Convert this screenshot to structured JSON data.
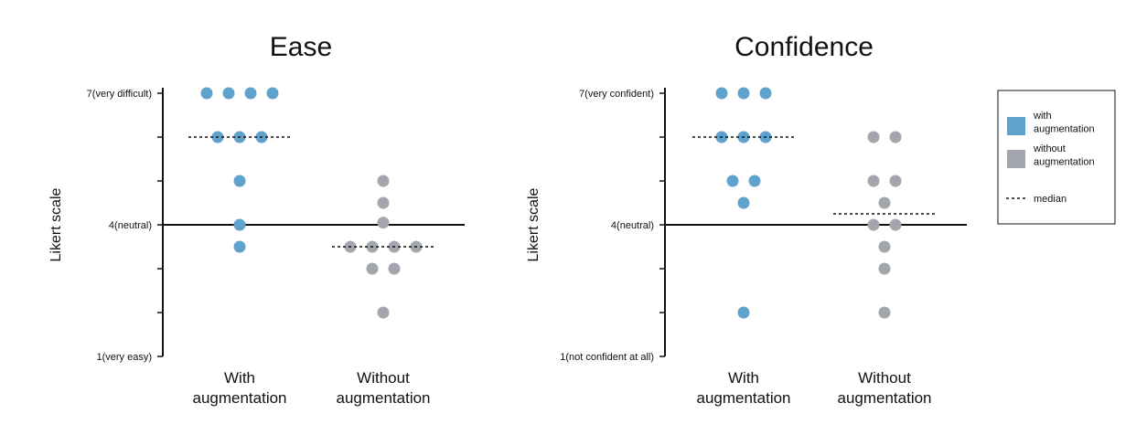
{
  "chart_data": [
    {
      "type": "scatter",
      "title": "Ease",
      "ylabel": "Likert scale",
      "ylim": [
        1,
        7
      ],
      "y_tick_labels": {
        "1": "1(very easy)",
        "4": "4(neutral)",
        "7": "7(very difficult)"
      },
      "categories": [
        "With\naugmentation",
        "Without\naugmentation"
      ],
      "series": [
        {
          "name": "with augmentation",
          "color": "#5fa2cc",
          "values": [
            7,
            7,
            7,
            7,
            6,
            6,
            6,
            5,
            4,
            3.5
          ]
        },
        {
          "name": "without augmentation",
          "color": "#a3a7ad",
          "values": [
            5,
            4.5,
            4.05,
            3.5,
            3.5,
            3.5,
            3.5,
            3,
            3,
            2
          ]
        }
      ],
      "medians": [
        6,
        3.5
      ]
    },
    {
      "type": "scatter",
      "title": "Confidence",
      "ylabel": "Likert scale",
      "ylim": [
        1,
        7
      ],
      "y_tick_labels": {
        "1": "1(not confident at all)",
        "4": "4(neutral)",
        "7": "7(very confident)"
      },
      "categories": [
        "With\naugmentation",
        "Without\naugmentation"
      ],
      "series": [
        {
          "name": "with augmentation",
          "color": "#5fa2cc",
          "values": [
            7,
            7,
            7,
            6,
            6,
            6,
            5,
            5,
            4.5,
            2
          ]
        },
        {
          "name": "without augmentation",
          "color": "#a3a7ad",
          "values": [
            6,
            6,
            5,
            5,
            4.5,
            4,
            4,
            3.5,
            3,
            2
          ]
        }
      ],
      "medians": [
        6,
        4.25
      ]
    }
  ],
  "legend": {
    "position": "right",
    "items": [
      {
        "label": "with\naugmentation",
        "color": "#5fa2cc",
        "kind": "square"
      },
      {
        "label": "without\naugmentation",
        "color": "#a3a7ad",
        "kind": "square"
      },
      {
        "label": "median",
        "kind": "dashed-line"
      }
    ]
  }
}
